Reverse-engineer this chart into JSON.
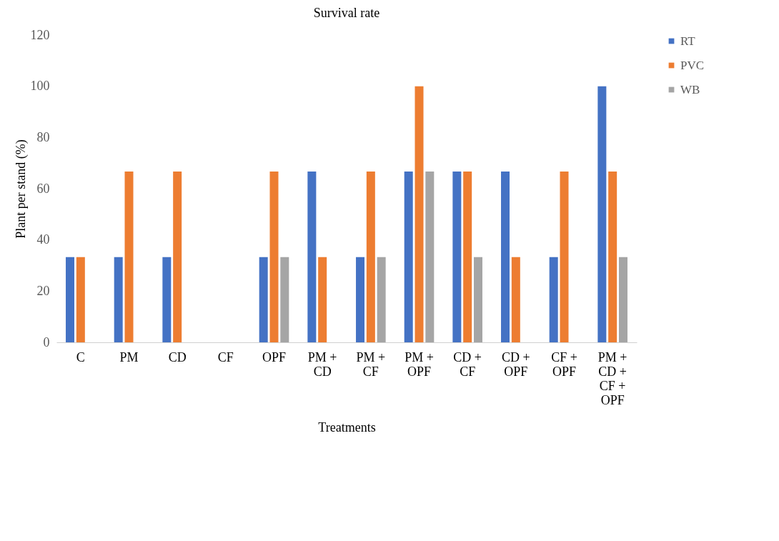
{
  "chart_data": {
    "type": "bar",
    "title": "Survival rate",
    "xlabel": "Treatments",
    "ylabel": "Plant per stand (%)",
    "categories": [
      "C",
      "PM",
      "CD",
      "CF",
      "OPF",
      "PM + CD",
      "PM + CF",
      "PM + OPF",
      "CD + CF",
      "CD + OPF",
      "CF + OPF",
      "PM + CD + CF + OPF"
    ],
    "series": [
      {
        "name": "RT",
        "color": "#4472c4",
        "values": [
          33.3,
          33.3,
          33.3,
          0,
          33.3,
          66.7,
          33.3,
          66.7,
          66.7,
          66.7,
          33.3,
          100
        ]
      },
      {
        "name": "PVC",
        "color": "#ed7d31",
        "values": [
          33.3,
          66.7,
          66.7,
          0,
          66.7,
          33.3,
          66.7,
          100,
          66.7,
          33.3,
          66.7,
          66.7
        ]
      },
      {
        "name": "WB",
        "color": "#a5a5a5",
        "values": [
          0,
          0,
          0,
          0,
          33.3,
          0,
          33.3,
          66.7,
          33.3,
          0,
          0,
          33.3
        ]
      }
    ],
    "ylim": [
      0,
      120
    ],
    "yticks": [
      0,
      20,
      40,
      60,
      80,
      100,
      120
    ],
    "grid": false,
    "legend": "top right"
  }
}
